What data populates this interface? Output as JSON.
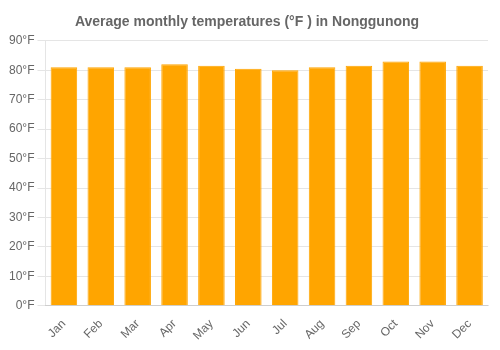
{
  "chart_data": {
    "type": "bar",
    "title": "Average monthly temperatures (°F ) in Nonggunong",
    "categories": [
      "Jan",
      "Feb",
      "Mar",
      "Apr",
      "May",
      "Jun",
      "Jul",
      "Aug",
      "Sep",
      "Oct",
      "Nov",
      "Dec"
    ],
    "values": [
      81,
      81,
      81,
      82,
      81.5,
      80.5,
      80,
      81,
      81.5,
      83,
      83,
      81.5
    ],
    "color": "#FFA500",
    "ylim": [
      0,
      90
    ],
    "yticks": [
      {
        "value": 0,
        "label": "0°F"
      },
      {
        "value": 10,
        "label": "10°F"
      },
      {
        "value": 20,
        "label": "20°F"
      },
      {
        "value": 30,
        "label": "30°F"
      },
      {
        "value": 40,
        "label": "40°F"
      },
      {
        "value": 50,
        "label": "50°F"
      },
      {
        "value": 60,
        "label": "60°F"
      },
      {
        "value": 70,
        "label": "70°F"
      },
      {
        "value": 80,
        "label": "80°F"
      },
      {
        "value": 90,
        "label": "90°F"
      }
    ],
    "grid": true
  }
}
